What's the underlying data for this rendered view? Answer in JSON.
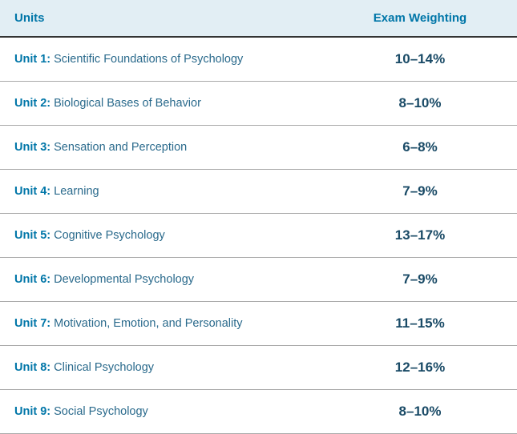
{
  "table": {
    "type": "table",
    "background_color": "#ffffff",
    "header_background": "#e2eef4",
    "header_text_color": "#0076a8",
    "header_fontsize": 15,
    "header_border_bottom": "#333333",
    "row_border_color": "#aaaaaa",
    "unit_label_color": "#0076a8",
    "unit_title_color": "#2a6a8c",
    "weight_color": "#194a66",
    "unit_fontsize": 14.5,
    "weight_fontsize": 17,
    "columns": {
      "units": "Units",
      "weighting": "Exam Weighting"
    },
    "rows": [
      {
        "label": "Unit 1:",
        "title": "Scientific Foundations of Psychology",
        "weight": "10–14%"
      },
      {
        "label": "Unit 2:",
        "title": "Biological Bases of Behavior",
        "weight": "8–10%"
      },
      {
        "label": "Unit 3:",
        "title": "Sensation and Perception",
        "weight": "6–8%"
      },
      {
        "label": "Unit 4:",
        "title": "Learning",
        "weight": "7–9%"
      },
      {
        "label": "Unit 5:",
        "title": "Cognitive Psychology",
        "weight": "13–17%"
      },
      {
        "label": "Unit 6:",
        "title": "Developmental Psychology",
        "weight": "7–9%"
      },
      {
        "label": "Unit 7:",
        "title": "Motivation, Emotion, and Personality",
        "weight": "11–15%"
      },
      {
        "label": "Unit 8:",
        "title": "Clinical Psychology",
        "weight": "12–16%"
      },
      {
        "label": "Unit 9:",
        "title": "Social Psychology",
        "weight": "8–10%"
      }
    ]
  }
}
